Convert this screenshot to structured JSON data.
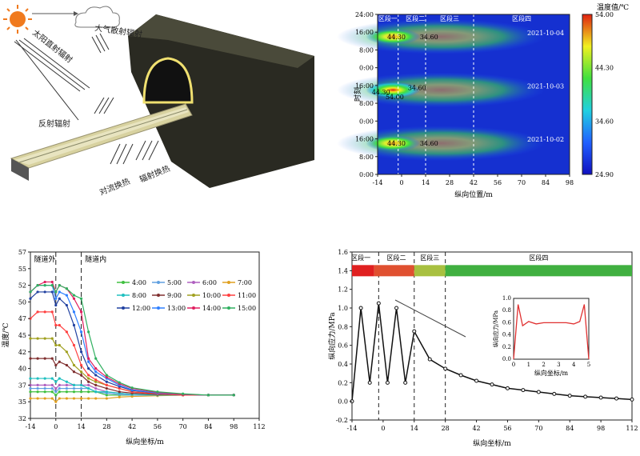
{
  "diagram": {
    "labels": [
      "大气散射辐射",
      "太阳直射辐射",
      "反射辐射",
      "对流换热",
      "辐射换热"
    ],
    "colors": {
      "sun": "#f07a1e",
      "tunnel": "#2a2a22",
      "road": "#d8d2a0",
      "portal": "#f0e070"
    }
  },
  "chart_data": [
    {
      "type": "heatmap",
      "xlabel": "纵向位置/m",
      "ylabel": "时刻",
      "colorbar_title": "温度值/℃",
      "colorbar_ticks": [
        "54.00",
        "44.30",
        "34.60",
        "24.90"
      ],
      "x_ticks": [
        "-14",
        "0",
        "14",
        "28",
        "42",
        "56",
        "70",
        "84",
        "98"
      ],
      "y_ticks": [
        "0:00",
        "8:00",
        "16:00",
        "0:00",
        "8:00",
        "16:00",
        "0:00",
        "8:00",
        "16:00",
        "24:00"
      ],
      "region_labels": [
        "区段一",
        "区段二",
        "区段三",
        "区段四"
      ],
      "date_labels": [
        "2021-10-04",
        "2021-10-03",
        "2021-10-02"
      ],
      "contour_labels": [
        {
          "text": "44.30",
          "x": -3,
          "y": 62
        },
        {
          "text": "34.60",
          "x": 16,
          "y": 62
        },
        {
          "text": "34.60",
          "x": 9,
          "y": 39
        },
        {
          "text": "44.30",
          "x": -12,
          "y": 37
        },
        {
          "text": "54.00",
          "x": -4,
          "y": 35
        },
        {
          "text": "44.30",
          "x": -3,
          "y": 14
        },
        {
          "text": "34.60",
          "x": 16,
          "y": 14
        }
      ],
      "hotspots": [
        {
          "x": -5,
          "y": 62,
          "peak": 48
        },
        {
          "x": -5,
          "y": 38,
          "peak": 54
        },
        {
          "x": -5,
          "y": 14,
          "peak": 50
        }
      ],
      "xlim": [
        -14,
        98
      ],
      "ylim": [
        0,
        72
      ],
      "clim": [
        24.9,
        54.0
      ]
    },
    {
      "type": "line",
      "xlabel": "纵向坐标/m",
      "ylabel": "温度/℃",
      "ylim": [
        32,
        57
      ],
      "xlim": [
        -14,
        112
      ],
      "x_ticks": [
        "-14",
        "0",
        "14",
        "28",
        "42",
        "56",
        "70",
        "84",
        "98",
        "112"
      ],
      "y_ticks": [
        "32",
        "35",
        "37",
        "40",
        "42",
        "45",
        "47",
        "50",
        "52",
        "55",
        "57"
      ],
      "region_labels": [
        "隧道外",
        "隧道内"
      ],
      "x": [
        -14,
        -10,
        -6,
        -2,
        0,
        2,
        6,
        10,
        14,
        18,
        22,
        28,
        35,
        42,
        56,
        70,
        84,
        98
      ],
      "series": [
        {
          "name": "4:00",
          "color": "#40c040",
          "values": [
            36,
            36,
            36,
            36,
            35.5,
            36,
            36,
            36,
            36,
            36,
            36,
            35.5,
            35.5,
            35.5,
            35.5,
            35.5,
            35.5,
            35.5
          ]
        },
        {
          "name": "5:00",
          "color": "#60a0e0",
          "values": [
            36.5,
            36.5,
            36.5,
            36.5,
            36,
            36.5,
            36.5,
            36.5,
            36.5,
            36.5,
            36,
            35.8,
            35.6,
            35.5,
            35.5,
            35.5,
            35.5,
            35.5
          ]
        },
        {
          "name": "6:00",
          "color": "#b060c0",
          "values": [
            37,
            37,
            37,
            37,
            36.5,
            37,
            37,
            37,
            37,
            37,
            36.5,
            36,
            35.8,
            35.6,
            35.5,
            35.5,
            35.5,
            35.5
          ]
        },
        {
          "name": "7:00",
          "color": "#e0a020",
          "values": [
            35,
            35,
            35,
            35,
            34.5,
            35,
            35,
            35,
            35,
            35,
            35,
            35,
            35.2,
            35.3,
            35.4,
            35.5,
            35.5,
            35.5
          ]
        },
        {
          "name": "8:00",
          "color": "#20c0c0",
          "values": [
            38,
            38,
            38,
            38,
            37.5,
            38,
            37.5,
            37,
            37,
            36.5,
            36,
            36,
            35.8,
            35.6,
            35.5,
            35.5,
            35.5,
            35.5
          ]
        },
        {
          "name": "9:00",
          "color": "#803030",
          "values": [
            41,
            41,
            41,
            41,
            40,
            40.5,
            40,
            39,
            38.5,
            37.5,
            37,
            36.5,
            36,
            35.8,
            35.6,
            35.5,
            35.5,
            35.5
          ]
        },
        {
          "name": "10:00",
          "color": "#a0a020",
          "values": [
            44,
            44,
            44,
            44,
            43,
            43,
            42,
            40,
            39,
            38,
            37.5,
            37,
            36.5,
            36,
            35.7,
            35.5,
            35.5,
            35.5
          ]
        },
        {
          "name": "11:00",
          "color": "#ff4040",
          "values": [
            47,
            48,
            48,
            48,
            46,
            46,
            45,
            43,
            40,
            38.5,
            37.8,
            37,
            36.5,
            36,
            35.7,
            35.5,
            35.5,
            35.5
          ]
        },
        {
          "name": "12:00",
          "color": "#2040a0",
          "values": [
            50,
            51,
            51,
            51,
            49,
            50,
            49,
            46,
            42,
            39.5,
            38.5,
            37.5,
            36.8,
            36.2,
            35.8,
            35.6,
            35.5,
            35.5
          ]
        },
        {
          "name": "13:00",
          "color": "#3080ff",
          "values": [
            51,
            52,
            52,
            52,
            50,
            51,
            50.5,
            48,
            45,
            40.5,
            39,
            38,
            37,
            36.3,
            35.8,
            35.6,
            35.5,
            35.5
          ]
        },
        {
          "name": "14:00",
          "color": "#e02060",
          "values": [
            51,
            52,
            52.5,
            52.5,
            51,
            52,
            51.5,
            50,
            48,
            41,
            39.5,
            38.2,
            37.2,
            36.5,
            35.9,
            35.6,
            35.5,
            35.5
          ]
        },
        {
          "name": "15:00",
          "color": "#30b060",
          "values": [
            51,
            52,
            52,
            52,
            51,
            52,
            51.5,
            50.5,
            50,
            45,
            41,
            38.5,
            37.4,
            36.6,
            36,
            35.7,
            35.5,
            35.5
          ]
        }
      ]
    },
    {
      "type": "line",
      "xlabel": "纵向坐标/m",
      "ylabel": "纵向应力/MPa",
      "ylim": [
        -0.2,
        1.6
      ],
      "xlim": [
        -14,
        112
      ],
      "x_ticks": [
        "-14",
        "0",
        "14",
        "28",
        "42",
        "56",
        "70",
        "84",
        "98",
        "112"
      ],
      "y_ticks": [
        "-0.2",
        "0.0",
        "0.2",
        "0.4",
        "0.6",
        "0.8",
        "1.0",
        "1.2",
        "1.4",
        "1.6"
      ],
      "region_labels": [
        "区段一",
        "区段二",
        "区段三",
        "区段四"
      ],
      "strip": {
        "y": 1.4,
        "segments": [
          {
            "from": -14,
            "to": -4,
            "color": "#e02020"
          },
          {
            "from": -4,
            "to": 14,
            "color": "#e05030"
          },
          {
            "from": 14,
            "to": 28,
            "color": "#a8c040"
          },
          {
            "from": 28,
            "to": 112,
            "color": "#40b040"
          }
        ]
      },
      "x": [
        -14,
        -10,
        -6,
        -2,
        2,
        6,
        10,
        14,
        21,
        28,
        35,
        42,
        49,
        56,
        63,
        70,
        77,
        84,
        91,
        98,
        105,
        112
      ],
      "values": [
        0.0,
        1.0,
        0.2,
        1.05,
        0.2,
        1.0,
        0.2,
        0.75,
        0.45,
        0.35,
        0.28,
        0.22,
        0.18,
        0.14,
        0.12,
        0.1,
        0.08,
        0.06,
        0.05,
        0.04,
        0.03,
        0.02
      ],
      "inset": {
        "xlabel": "纵向坐标/m",
        "ylabel": "纵向应力/MPa",
        "x_ticks": [
          "0",
          "1",
          "2",
          "3",
          "4",
          "5"
        ],
        "y_ticks": [
          "0.0",
          "0.2",
          "0.4",
          "0.6",
          "0.8",
          "1.0"
        ],
        "x": [
          0,
          0.3,
          0.6,
          1,
          1.5,
          2,
          2.5,
          3,
          3.5,
          4,
          4.4,
          4.7,
          5
        ],
        "values": [
          0.0,
          0.9,
          0.55,
          0.62,
          0.58,
          0.6,
          0.6,
          0.6,
          0.6,
          0.58,
          0.62,
          0.9,
          0.0
        ]
      }
    }
  ]
}
